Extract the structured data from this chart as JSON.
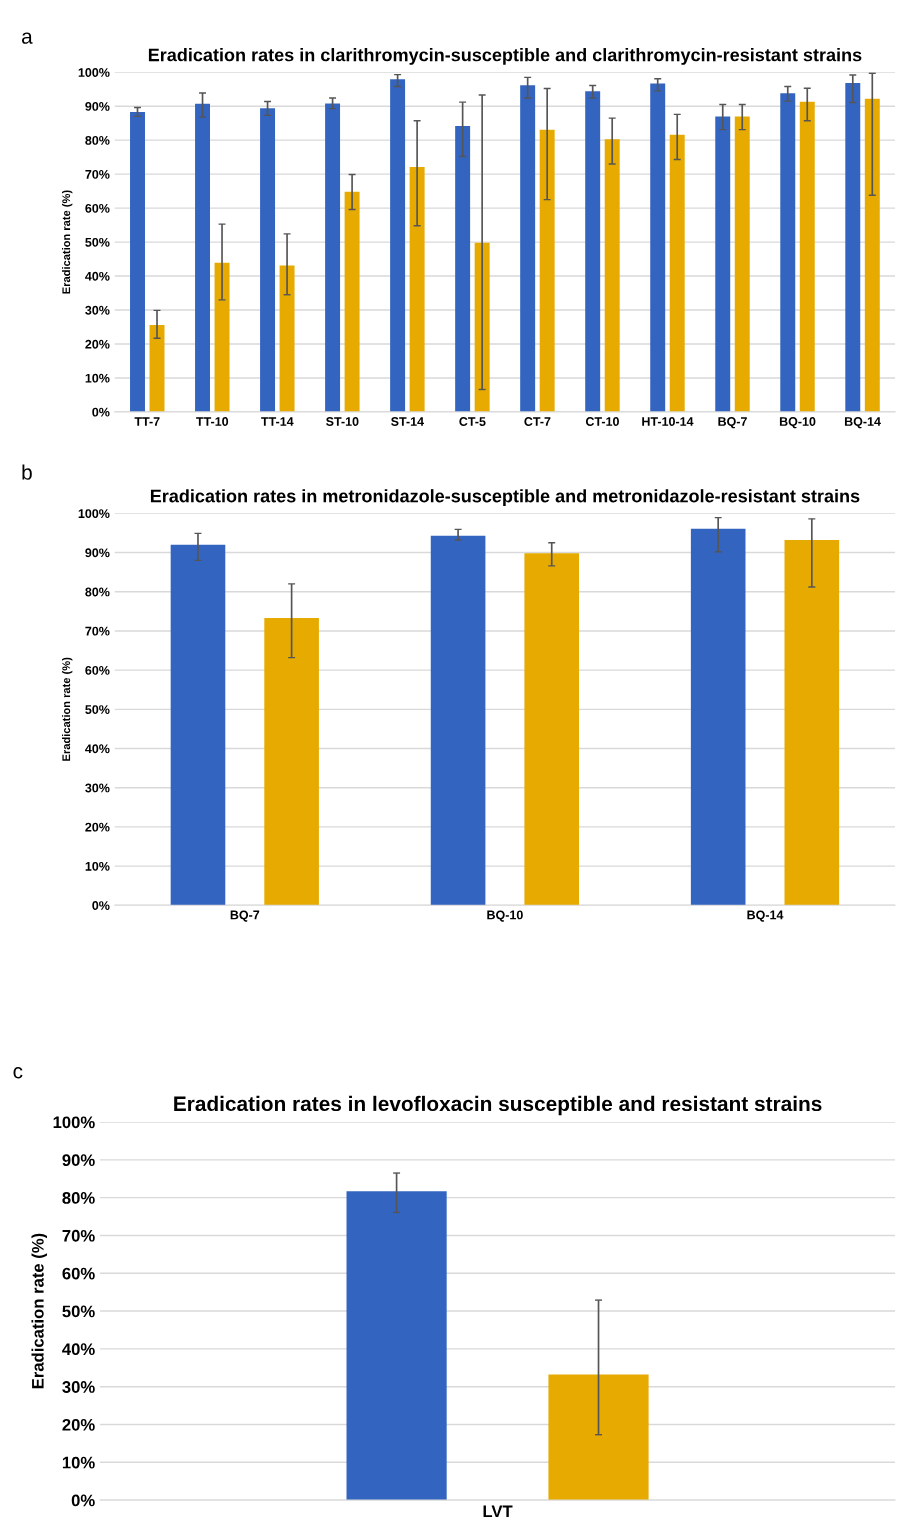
{
  "chart_data": [
    {
      "type": "bar",
      "title": "Eradication rates in clarithromycin-susceptible and clarithromycin-resistant strains",
      "ylabel": "Eradication rate (%)",
      "annotations": [
        "a"
      ],
      "categories": [
        "TT-7",
        "TT-10",
        "TT-14",
        "ST-10",
        "ST-14",
        "CT-5",
        "CT-7",
        "CT-10",
        "HT-10-14",
        "BQ-7",
        "BQ-10",
        "BQ-14"
      ],
      "series": [
        {
          "color": "#3364c0",
          "values": [
            88.3,
            90.7,
            89.4,
            90.8,
            97.9,
            84.2,
            96.2,
            94.4,
            96.7,
            87.0,
            93.8,
            96.8
          ],
          "errors": [
            [
              87.0,
              89.6
            ],
            [
              86.8,
              93.9
            ],
            [
              87.3,
              91.4
            ],
            [
              89.3,
              92.4
            ],
            [
              95.8,
              99.3
            ],
            [
              75.2,
              91.2
            ],
            [
              92.4,
              98.5
            ],
            [
              92.4,
              96.1
            ],
            [
              94.5,
              98.1
            ],
            [
              83.1,
              90.5
            ],
            [
              91.5,
              95.8
            ],
            [
              91.1,
              99.2
            ]
          ]
        },
        {
          "color": "#e6aa00",
          "values": [
            25.6,
            43.9,
            43.1,
            64.8,
            72.1,
            49.8,
            83.1,
            80.3,
            81.6,
            87.0,
            91.3,
            92.2
          ],
          "errors": [
            [
              21.7,
              29.9
            ],
            [
              33.0,
              55.3
            ],
            [
              34.5,
              52.4
            ],
            [
              59.6,
              69.9
            ],
            [
              54.8,
              85.7
            ],
            [
              6.6,
              93.3
            ],
            [
              62.5,
              95.2
            ],
            [
              73.0,
              86.5
            ],
            [
              74.3,
              87.6
            ],
            [
              83.1,
              90.5
            ],
            [
              85.7,
              95.3
            ],
            [
              63.8,
              99.7
            ]
          ]
        }
      ],
      "ylim": [
        0,
        100
      ],
      "yticks": [
        {
          "value": 0,
          "label": "0%"
        },
        {
          "value": 10,
          "label": "10%"
        },
        {
          "value": 20,
          "label": "20%"
        },
        {
          "value": 30,
          "label": "30%"
        },
        {
          "value": 40,
          "label": "40%"
        },
        {
          "value": 50,
          "label": "50%"
        },
        {
          "value": 60,
          "label": "60%"
        },
        {
          "value": 70,
          "label": "70%"
        },
        {
          "value": 80,
          "label": "80%"
        },
        {
          "value": 90,
          "label": "90%"
        },
        {
          "value": 100,
          "label": "100%"
        }
      ],
      "grid": "y"
    },
    {
      "type": "bar",
      "title": "Eradication rates in metronidazole-susceptible and metronidazole-resistant strains",
      "ylabel": "Eradication rate (%)",
      "annotations": [
        "b"
      ],
      "categories": [
        "BQ-7",
        "BQ-10",
        "BQ-14"
      ],
      "series": [
        {
          "color": "#3364c0",
          "values": [
            92.0,
            94.3,
            96.1
          ],
          "errors": [
            [
              88.0,
              94.9
            ],
            [
              93.2,
              95.9
            ],
            [
              90.2,
              98.9
            ]
          ]
        },
        {
          "color": "#e6aa00",
          "values": [
            73.3,
            89.8,
            93.2
          ],
          "errors": [
            [
              63.2,
              82.0
            ],
            [
              86.6,
              92.5
            ],
            [
              81.2,
              98.6
            ]
          ]
        }
      ],
      "ylim": [
        0,
        100
      ],
      "yticks": [
        {
          "value": 0,
          "label": "0%"
        },
        {
          "value": 10,
          "label": "10%"
        },
        {
          "value": 20,
          "label": "20%"
        },
        {
          "value": 30,
          "label": "30%"
        },
        {
          "value": 40,
          "label": "40%"
        },
        {
          "value": 50,
          "label": "50%"
        },
        {
          "value": 60,
          "label": "60%"
        },
        {
          "value": 70,
          "label": "70%"
        },
        {
          "value": 80,
          "label": "80%"
        },
        {
          "value": 90,
          "label": "90%"
        },
        {
          "value": 100,
          "label": "100%"
        }
      ],
      "grid": "y"
    },
    {
      "type": "bar",
      "title": "Eradication rates in levofloxacin susceptible and resistant strains",
      "ylabel": "Eradication rate (%)",
      "annotations": [
        "c"
      ],
      "categories": [
        "LVT"
      ],
      "series": [
        {
          "color": "#3364c0",
          "values": [
            81.7
          ],
          "errors": [
            [
              76.1,
              86.5
            ]
          ]
        },
        {
          "color": "#e6aa00",
          "values": [
            33.2
          ],
          "errors": [
            [
              17.3,
              52.9
            ]
          ]
        }
      ],
      "ylim": [
        0,
        100
      ],
      "yticks": [
        {
          "value": 0,
          "label": "0%"
        },
        {
          "value": 10,
          "label": "10%"
        },
        {
          "value": 20,
          "label": "20%"
        },
        {
          "value": 30,
          "label": "30%"
        },
        {
          "value": 40,
          "label": "40%"
        },
        {
          "value": 50,
          "label": "50%"
        },
        {
          "value": 60,
          "label": "60%"
        },
        {
          "value": 70,
          "label": "70%"
        },
        {
          "value": 80,
          "label": "80%"
        },
        {
          "value": 90,
          "label": "90%"
        },
        {
          "value": 100,
          "label": "100%"
        }
      ],
      "grid": "y"
    }
  ]
}
